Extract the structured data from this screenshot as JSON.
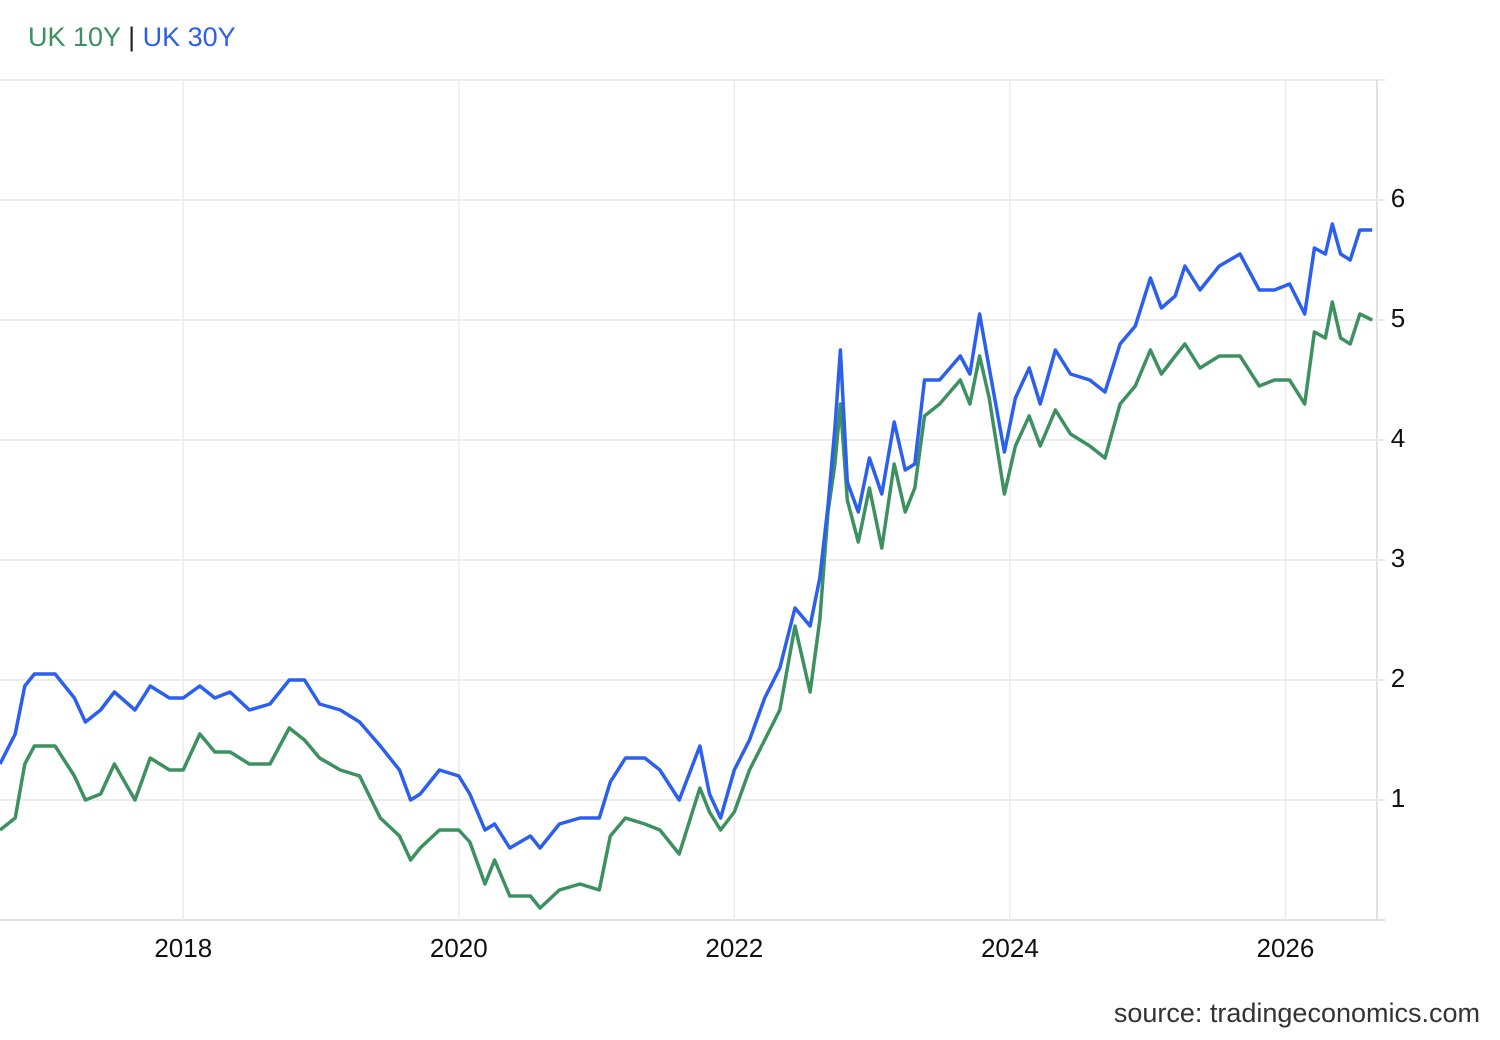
{
  "chart_data": {
    "type": "line",
    "legend_separator": "|",
    "source": "source: tradingeconomics.com",
    "x": [
      2016.67,
      2016.78,
      2016.85,
      2016.92,
      2017.07,
      2017.21,
      2017.29,
      2017.4,
      2017.5,
      2017.65,
      2017.76,
      2017.9,
      2018.0,
      2018.12,
      2018.23,
      2018.34,
      2018.48,
      2018.63,
      2018.77,
      2018.88,
      2018.99,
      2019.14,
      2019.28,
      2019.43,
      2019.57,
      2019.65,
      2019.72,
      2019.86,
      2020.0,
      2020.08,
      2020.19,
      2020.26,
      2020.37,
      2020.52,
      2020.59,
      2020.73,
      2020.88,
      2021.02,
      2021.1,
      2021.21,
      2021.35,
      2021.46,
      2021.6,
      2021.75,
      2021.82,
      2021.9,
      2022.0,
      2022.11,
      2022.22,
      2022.33,
      2022.44,
      2022.55,
      2022.62,
      2022.68,
      2022.73,
      2022.77,
      2022.82,
      2022.9,
      2022.98,
      2023.07,
      2023.16,
      2023.24,
      2023.31,
      2023.38,
      2023.49,
      2023.64,
      2023.71,
      2023.78,
      2023.85,
      2023.96,
      2024.04,
      2024.14,
      2024.22,
      2024.33,
      2024.44,
      2024.58,
      2024.69,
      2024.8,
      2024.91,
      2025.02,
      2025.1,
      2025.2,
      2025.27,
      2025.38,
      2025.52,
      2025.67,
      2025.81,
      2025.92,
      2026.03,
      2026.14,
      2026.21,
      2026.29,
      2026.34,
      2026.4,
      2026.47,
      2026.54,
      2026.63
    ],
    "series": [
      {
        "name": "UK 10Y",
        "color": "#3d9160",
        "values": [
          0.75,
          0.85,
          1.3,
          1.45,
          1.45,
          1.2,
          1.0,
          1.05,
          1.3,
          1.0,
          1.35,
          1.25,
          1.25,
          1.55,
          1.4,
          1.4,
          1.3,
          1.3,
          1.6,
          1.5,
          1.35,
          1.25,
          1.2,
          0.85,
          0.7,
          0.5,
          0.6,
          0.75,
          0.75,
          0.65,
          0.3,
          0.5,
          0.2,
          0.2,
          0.1,
          0.25,
          0.3,
          0.25,
          0.7,
          0.85,
          0.8,
          0.75,
          0.55,
          1.1,
          0.9,
          0.75,
          0.9,
          1.25,
          1.5,
          1.75,
          2.45,
          1.9,
          2.5,
          3.4,
          3.8,
          4.3,
          3.5,
          3.15,
          3.6,
          3.1,
          3.8,
          3.4,
          3.6,
          4.2,
          4.3,
          4.5,
          4.3,
          4.7,
          4.35,
          3.55,
          3.95,
          4.2,
          3.95,
          4.25,
          4.05,
          3.95,
          3.85,
          4.3,
          4.45,
          4.75,
          4.55,
          4.7,
          4.8,
          4.6,
          4.7,
          4.7,
          4.45,
          4.5,
          4.5,
          4.3,
          4.9,
          4.85,
          5.15,
          4.85,
          4.8,
          5.05,
          5.0
        ]
      },
      {
        "name": "UK 30Y",
        "color": "#2b5fef",
        "values": [
          1.3,
          1.55,
          1.95,
          2.05,
          2.05,
          1.85,
          1.65,
          1.75,
          1.9,
          1.75,
          1.95,
          1.85,
          1.85,
          1.95,
          1.85,
          1.9,
          1.75,
          1.8,
          2.0,
          2.0,
          1.8,
          1.75,
          1.65,
          1.45,
          1.25,
          1.0,
          1.05,
          1.25,
          1.2,
          1.05,
          0.75,
          0.8,
          0.6,
          0.7,
          0.6,
          0.8,
          0.85,
          0.85,
          1.15,
          1.35,
          1.35,
          1.25,
          1.0,
          1.45,
          1.05,
          0.85,
          1.25,
          1.5,
          1.85,
          2.1,
          2.6,
          2.45,
          2.85,
          3.45,
          4.1,
          4.75,
          3.65,
          3.4,
          3.85,
          3.55,
          4.15,
          3.75,
          3.8,
          4.5,
          4.5,
          4.7,
          4.55,
          5.05,
          4.6,
          3.9,
          4.35,
          4.6,
          4.3,
          4.75,
          4.55,
          4.5,
          4.4,
          4.8,
          4.95,
          5.35,
          5.1,
          5.2,
          5.45,
          5.25,
          5.45,
          5.55,
          5.25,
          5.25,
          5.3,
          5.05,
          5.6,
          5.55,
          5.8,
          5.55,
          5.5,
          5.75,
          5.75
        ]
      }
    ],
    "xlim": [
      2016.67,
      2026.65
    ],
    "xticks": [
      2018,
      2020,
      2022,
      2024,
      2026
    ],
    "ylim": [
      0,
      7
    ],
    "yticks": [
      1,
      2,
      3,
      4,
      5,
      6
    ],
    "grid": true
  }
}
